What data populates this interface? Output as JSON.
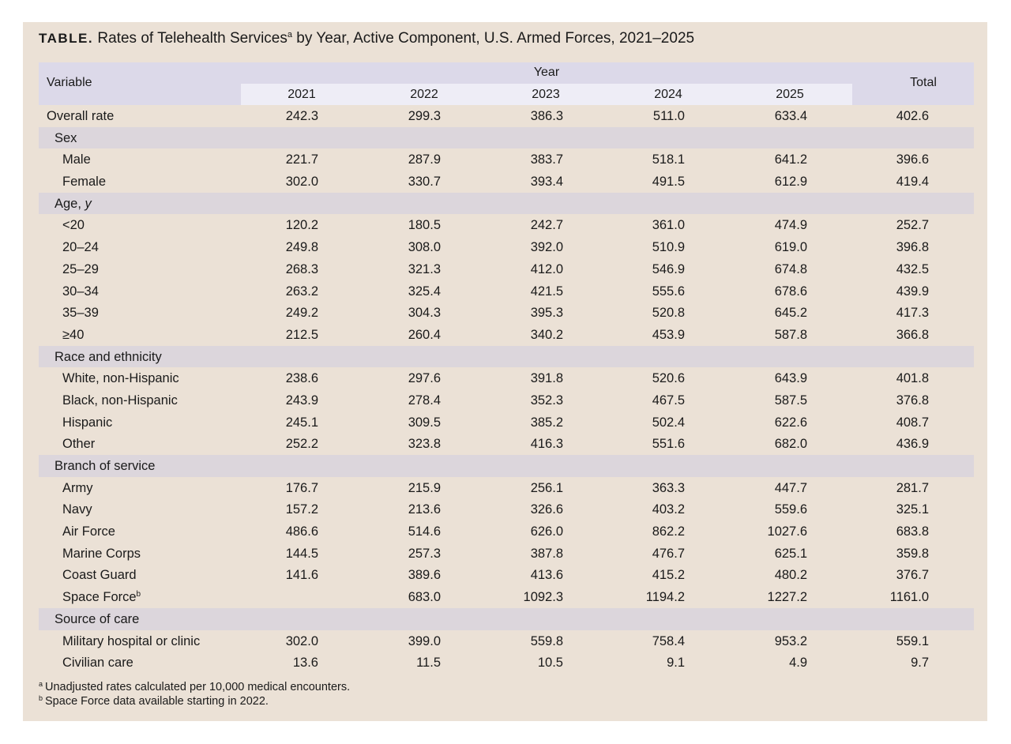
{
  "title": {
    "label": "TABLE.",
    "text": "Rates of Telehealth Services",
    "marker": "a",
    "rest": "by Year, Active Component, U.S. Armed Forces, 2021–2025"
  },
  "header": {
    "variable": "Variable",
    "year": "Year",
    "years": [
      "2021",
      "2022",
      "2023",
      "2024",
      "2025"
    ],
    "total": "Total"
  },
  "rows": [
    {
      "type": "top",
      "label": "Overall rate",
      "values": [
        "242.3",
        "299.3",
        "386.3",
        "511.0",
        "633.4",
        "402.6"
      ]
    },
    {
      "type": "sec",
      "label": "Sex"
    },
    {
      "type": "item",
      "label": "Male",
      "values": [
        "221.7",
        "287.9",
        "383.7",
        "518.1",
        "641.2",
        "396.6"
      ]
    },
    {
      "type": "item",
      "label": "Female",
      "values": [
        "302.0",
        "330.7",
        "393.4",
        "491.5",
        "612.9",
        "419.4"
      ]
    },
    {
      "type": "sec",
      "label": "Age,",
      "label_italic": "y"
    },
    {
      "type": "item",
      "label": "<20",
      "values": [
        "120.2",
        "180.5",
        "242.7",
        "361.0",
        "474.9",
        "252.7"
      ]
    },
    {
      "type": "item",
      "label": "20–24",
      "values": [
        "249.8",
        "308.0",
        "392.0",
        "510.9",
        "619.0",
        "396.8"
      ]
    },
    {
      "type": "item",
      "label": "25–29",
      "values": [
        "268.3",
        "321.3",
        "412.0",
        "546.9",
        "674.8",
        "432.5"
      ]
    },
    {
      "type": "item",
      "label": "30–34",
      "values": [
        "263.2",
        "325.4",
        "421.5",
        "555.6",
        "678.6",
        "439.9"
      ]
    },
    {
      "type": "item",
      "label": "35–39",
      "values": [
        "249.2",
        "304.3",
        "395.3",
        "520.8",
        "645.2",
        "417.3"
      ]
    },
    {
      "type": "item",
      "label": "≥40",
      "values": [
        "212.5",
        "260.4",
        "340.2",
        "453.9",
        "587.8",
        "366.8"
      ]
    },
    {
      "type": "sec",
      "label": "Race and ethnicity"
    },
    {
      "type": "item",
      "label": "White, non-Hispanic",
      "values": [
        "238.6",
        "297.6",
        "391.8",
        "520.6",
        "643.9",
        "401.8"
      ]
    },
    {
      "type": "item",
      "label": "Black, non-Hispanic",
      "values": [
        "243.9",
        "278.4",
        "352.3",
        "467.5",
        "587.5",
        "376.8"
      ]
    },
    {
      "type": "item",
      "label": "Hispanic",
      "values": [
        "245.1",
        "309.5",
        "385.2",
        "502.4",
        "622.6",
        "408.7"
      ]
    },
    {
      "type": "item",
      "label": "Other",
      "values": [
        "252.2",
        "323.8",
        "416.3",
        "551.6",
        "682.0",
        "436.9"
      ]
    },
    {
      "type": "sec",
      "label": "Branch of service"
    },
    {
      "type": "item",
      "label": "Army",
      "values": [
        "176.7",
        "215.9",
        "256.1",
        "363.3",
        "447.7",
        "281.7"
      ]
    },
    {
      "type": "item",
      "label": "Navy",
      "values": [
        "157.2",
        "213.6",
        "326.6",
        "403.2",
        "559.6",
        "325.1"
      ]
    },
    {
      "type": "item",
      "label": "Air Force",
      "values": [
        "486.6",
        "514.6",
        "626.0",
        "862.2",
        "1027.6",
        "683.8"
      ]
    },
    {
      "type": "item",
      "label": "Marine Corps",
      "values": [
        "144.5",
        "257.3",
        "387.8",
        "476.7",
        "625.1",
        "359.8"
      ]
    },
    {
      "type": "item",
      "label": "Coast Guard",
      "values": [
        "141.6",
        "389.6",
        "413.6",
        "415.2",
        "480.2",
        "376.7"
      ]
    },
    {
      "type": "item",
      "label": "Space Force",
      "marker": "b",
      "values": [
        "",
        "683.0",
        "1092.3",
        "1194.2",
        "1227.2",
        "1161.0"
      ]
    },
    {
      "type": "sec",
      "label": "Source of care"
    },
    {
      "type": "item",
      "label": "Military hospital or clinic",
      "values": [
        "302.0",
        "399.0",
        "559.8",
        "758.4",
        "953.2",
        "559.1"
      ]
    },
    {
      "type": "item",
      "label": "Civilian care",
      "values": [
        "13.6",
        "11.5",
        "10.5",
        "9.1",
        "4.9",
        "9.7"
      ]
    }
  ],
  "footnotes": [
    {
      "marker": "a",
      "text": "Unadjusted rates calculated per 10,000 medical encounters."
    },
    {
      "marker": "b",
      "text": "Space Force data available starting in 2022."
    }
  ],
  "colors": {
    "panel_bg": "#ebe1d6",
    "header_bg": "#dcd9e9",
    "header_years_bg": "#eeedf6",
    "section_bg": "#dcd6dc"
  }
}
